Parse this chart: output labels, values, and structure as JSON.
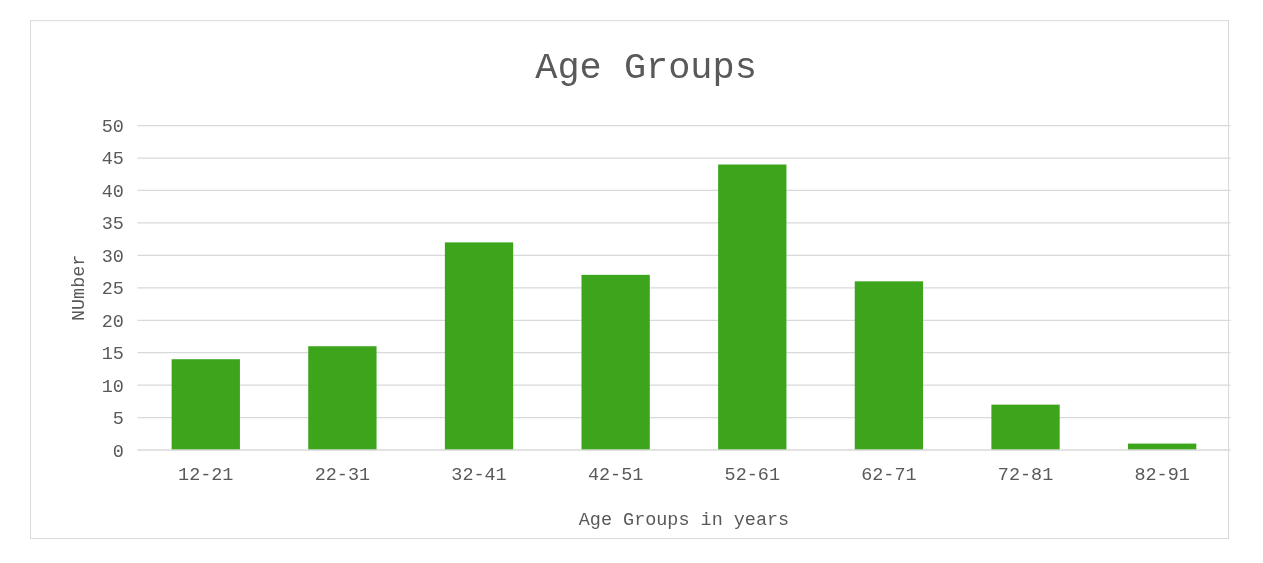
{
  "chart_data": {
    "type": "bar",
    "title": "Age Groups",
    "xlabel": "Age Groups in years",
    "ylabel": "NUmber",
    "categories": [
      "12-21",
      "22-31",
      "32-41",
      "42-51",
      "52-61",
      "62-71",
      "72-81",
      "82-91"
    ],
    "values": [
      14,
      16,
      32,
      27,
      44,
      26,
      7,
      1
    ],
    "color": "#3da51c",
    "ylim": [
      0,
      50
    ],
    "yticks": [
      0,
      5,
      10,
      15,
      20,
      25,
      30,
      35,
      40,
      45,
      50
    ],
    "grid": "y"
  }
}
